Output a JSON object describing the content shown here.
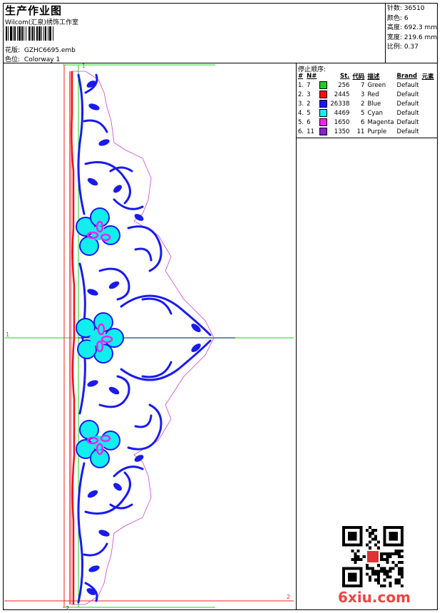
{
  "header": {
    "title": "生产作业图",
    "company": "Wilcom(汇泉)绣饰工作室",
    "design_file_label": "花版:",
    "design_file": "GZHC6695.emb",
    "colorway_label": "色位:",
    "colorway": "Colorway 1"
  },
  "stats": [
    {
      "label": "针数:",
      "value": "36510"
    },
    {
      "label": "颜色:",
      "value": "6"
    },
    {
      "label": "高度:",
      "value": "692.3 mm"
    },
    {
      "label": "宽度:",
      "value": "219.6 mm"
    },
    {
      "label": "比例:",
      "value": "0.37"
    }
  ],
  "stop_sequence": {
    "title": "停止顺序:",
    "headers": [
      "#",
      "N#",
      "St.",
      "代码",
      "描述",
      "Brand",
      "元素"
    ],
    "rows": [
      {
        "seq": "1.",
        "needle": "7",
        "color": "#22cc22",
        "stitches": "256",
        "code": "7",
        "desc": "Green",
        "brand": "Default"
      },
      {
        "seq": "2.",
        "needle": "3",
        "color": "#ee1111",
        "stitches": "2445",
        "code": "3",
        "desc": "Red",
        "brand": "Default"
      },
      {
        "seq": "3.",
        "needle": "2",
        "color": "#1a1aee",
        "stitches": "26338",
        "code": "2",
        "desc": "Blue",
        "brand": "Default"
      },
      {
        "seq": "4.",
        "needle": "5",
        "color": "#11eeee",
        "stitches": "4469",
        "code": "5",
        "desc": "Cyan",
        "brand": "Default"
      },
      {
        "seq": "5.",
        "needle": "6",
        "color": "#ee22ee",
        "stitches": "1650",
        "code": "6",
        "desc": "Magenta",
        "brand": "Default"
      },
      {
        "seq": "6.",
        "needle": "11",
        "color": "#8822cc",
        "stitches": "1350",
        "code": "11",
        "desc": "Purple",
        "brand": "Default"
      }
    ]
  },
  "guides": {
    "top": "1",
    "left": "1",
    "right": "2",
    "bottom": "2"
  },
  "watermark": "6xiu.com"
}
